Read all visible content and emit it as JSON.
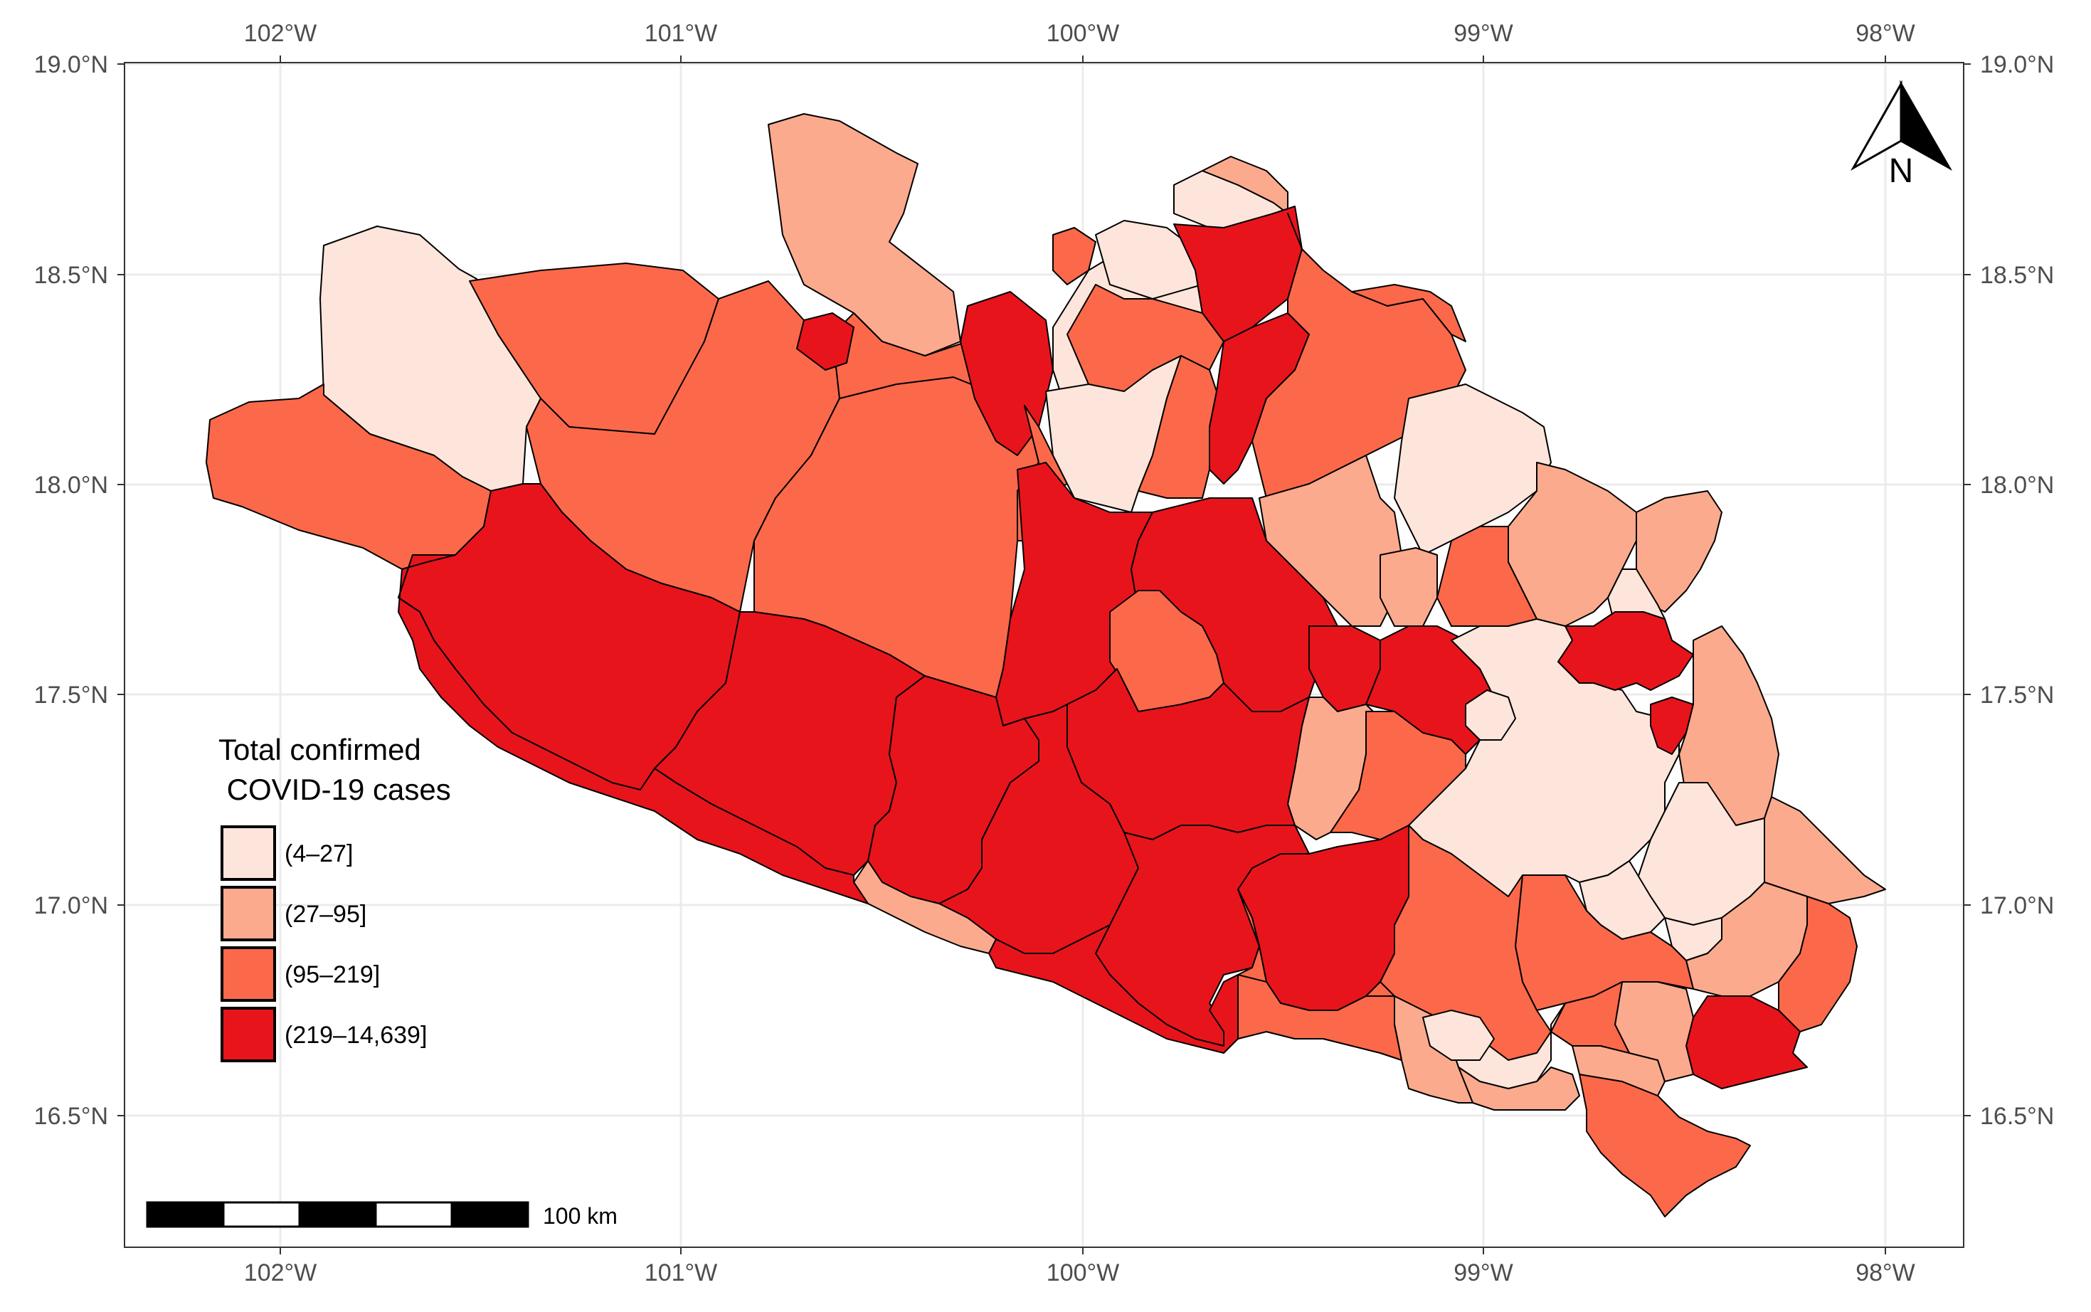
{
  "map": {
    "x_ticks": [
      "102°W",
      "101°W",
      "100°W",
      "99°W",
      "98°W"
    ],
    "y_ticks": [
      "19.0°N",
      "18.5°N",
      "18.0°N",
      "17.5°N",
      "17.0°N",
      "16.5°N"
    ],
    "legend": {
      "title_line1": "Total confirmed",
      "title_line2": " COVID-19 cases",
      "items": [
        {
          "label": "(4–27]",
          "color": "#fde5db"
        },
        {
          "label": "(27–95]",
          "color": "#fcaa8e"
        },
        {
          "label": "(95–219]",
          "color": "#fb694a"
        },
        {
          "label": "(219–14,639]",
          "color": "#e8141c"
        }
      ]
    },
    "north_arrow": {
      "label": "N"
    },
    "scale_bar": {
      "label": "100 km"
    }
  },
  "chart_data": {
    "type": "choropleth",
    "lon_range": [
      -102.4,
      -97.8
    ],
    "lat_range": [
      16.25,
      19.05
    ],
    "x_ticks_deg": [
      -102,
      -101,
      -100,
      -99,
      -98
    ],
    "y_ticks_deg": [
      19.0,
      18.5,
      18.0,
      17.5,
      17.0,
      16.5
    ],
    "grid": true,
    "legend_position": "bottom-left",
    "classes": [
      "(4–27]",
      "(27–95]",
      "(95–219]",
      "(219–14,639]"
    ]
  }
}
